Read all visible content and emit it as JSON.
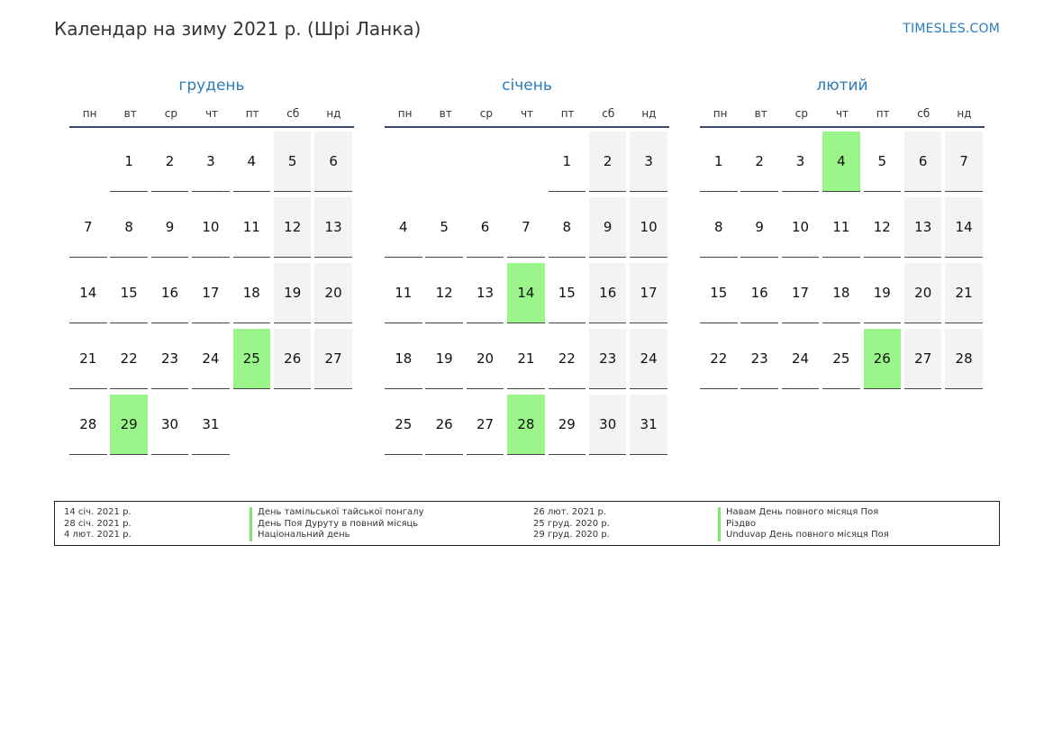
{
  "header": {
    "title": "Календар на зиму 2021 р. (Шрі Ланка)",
    "site": "TIMESLES.COM"
  },
  "weekdays": [
    "пн",
    "вт",
    "ср",
    "чт",
    "пт",
    "сб",
    "нд"
  ],
  "colors": {
    "accent": "#2b7bbf",
    "holiday": "#9af58a",
    "weekend": "#f3f3f3"
  },
  "months": [
    {
      "name": "грудень",
      "offset": 1,
      "days": [
        "1",
        "2",
        "3",
        "4",
        "5",
        "6",
        "7",
        "8",
        "9",
        "10",
        "11",
        "12",
        "13",
        "14",
        "15",
        "16",
        "17",
        "18",
        "19",
        "20",
        "21",
        "22",
        "23",
        "24",
        "25",
        "26",
        "27",
        "28",
        "29",
        "30",
        "31"
      ],
      "holidays": [
        "25",
        "29"
      ]
    },
    {
      "name": "січень",
      "offset": 4,
      "days": [
        "1",
        "2",
        "3",
        "4",
        "5",
        "6",
        "7",
        "8",
        "9",
        "10",
        "11",
        "12",
        "13",
        "14",
        "15",
        "16",
        "17",
        "18",
        "19",
        "20",
        "21",
        "22",
        "23",
        "24",
        "25",
        "26",
        "27",
        "28",
        "29",
        "30",
        "31"
      ],
      "holidays": [
        "14",
        "28"
      ]
    },
    {
      "name": "лютий",
      "offset": 0,
      "days": [
        "1",
        "2",
        "3",
        "4",
        "5",
        "6",
        "7",
        "8",
        "9",
        "10",
        "11",
        "12",
        "13",
        "14",
        "15",
        "16",
        "17",
        "18",
        "19",
        "20",
        "21",
        "22",
        "23",
        "24",
        "25",
        "26",
        "27",
        "28"
      ],
      "holidays": [
        "4",
        "26"
      ]
    }
  ],
  "legend": {
    "left": [
      {
        "date": "14 січ. 2021 р.",
        "name": "День тамільської тайської понгалу"
      },
      {
        "date": "28 січ. 2021 р.",
        "name": "День Поя Дуруту в повний місяць"
      },
      {
        "date": "4 лют. 2021 р.",
        "name": "Національний день"
      }
    ],
    "right": [
      {
        "date": "26 лют. 2021 р.",
        "name": "Навам День повного місяця Поя"
      },
      {
        "date": "25 груд. 2020 р.",
        "name": "Різдво"
      },
      {
        "date": "29 груд. 2020 р.",
        "name": "Unduvap День повного місяця Поя"
      }
    ]
  }
}
